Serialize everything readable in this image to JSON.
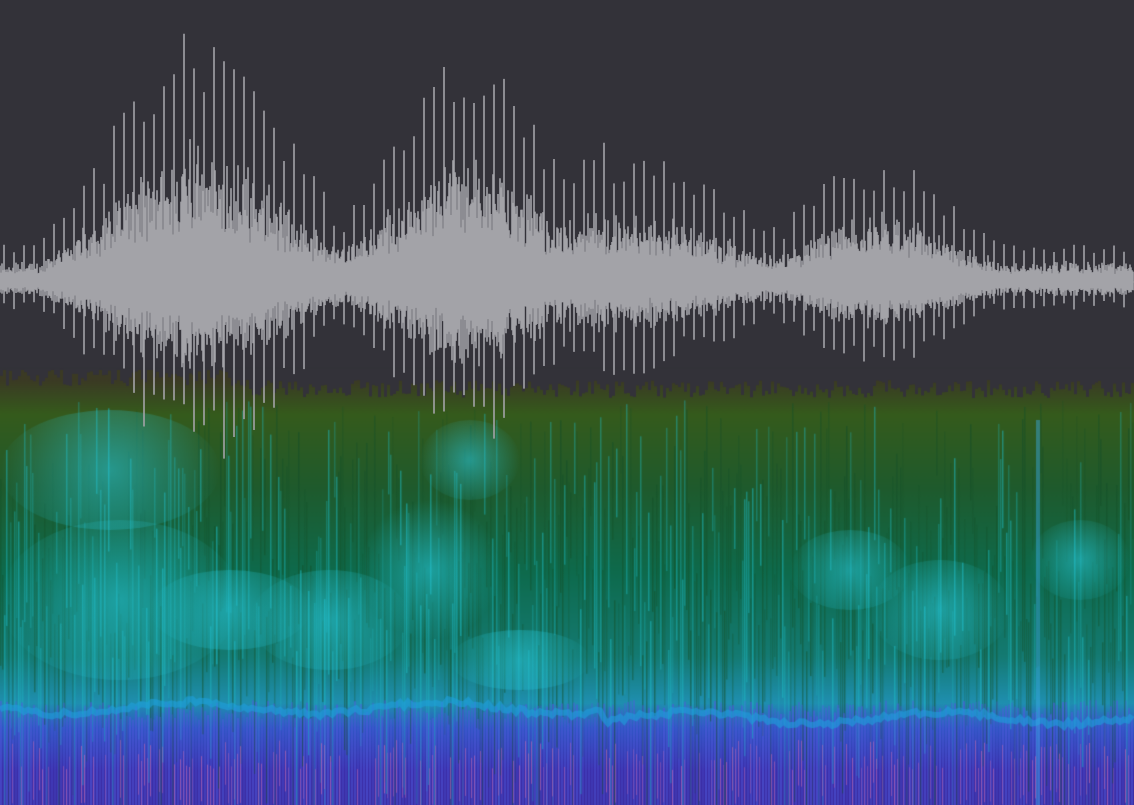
{
  "colors": {
    "background": "#333239",
    "waveform": "#a3a3a8",
    "spectro_low": "#4a3f10",
    "spectro_mid": "#0c6a5a",
    "spectro_high": "#1ab0c8",
    "spectro_band": "#3a3cb0",
    "spectro_peak": "#d86aa0"
  },
  "waveform": {
    "envelope_peaks": [
      0.42,
      0.98,
      0.8,
      0.52,
      0.4,
      0.36,
      0.22,
      0.2
    ]
  }
}
